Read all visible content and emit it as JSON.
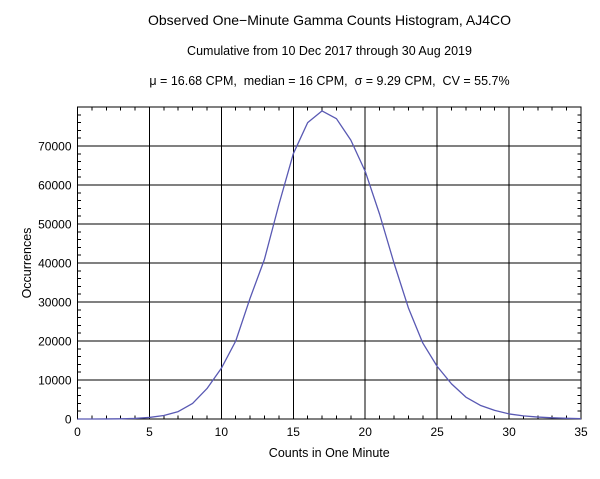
{
  "chart_data": {
    "type": "line",
    "title": "Observed One−Minute Gamma Counts Histogram, AJ4CO",
    "subtitle": "Cumulative from 10 Dec 2017 through 30 Aug 2019",
    "stats_line": "μ = 16.68 CPM,  median = 16 CPM,  σ = 9.29 CPM,  CV = 55.7%",
    "xlabel": "Counts in One Minute",
    "ylabel": "Occurrences",
    "x": [
      0,
      1,
      2,
      3,
      4,
      5,
      6,
      7,
      8,
      9,
      10,
      11,
      12,
      13,
      14,
      15,
      16,
      17,
      18,
      19,
      20,
      21,
      22,
      23,
      24,
      25,
      26,
      27,
      28,
      29,
      30,
      31,
      32,
      33,
      34,
      35
    ],
    "values": [
      0,
      0,
      10,
      50,
      150,
      400,
      900,
      1900,
      4000,
      7800,
      13000,
      20000,
      31000,
      41000,
      55000,
      68000,
      76000,
      79000,
      77000,
      71500,
      63500,
      52500,
      40000,
      28500,
      19500,
      13500,
      9000,
      5600,
      3500,
      2200,
      1300,
      800,
      500,
      300,
      180,
      100
    ],
    "xlim": [
      0,
      35
    ],
    "ylim": [
      0,
      80000
    ],
    "xticks": {
      "major": [
        0,
        5,
        10,
        15,
        20,
        25,
        30,
        35
      ],
      "minor_step": 1
    },
    "yticks": {
      "major": [
        0,
        10000,
        20000,
        30000,
        40000,
        50000,
        60000,
        70000
      ],
      "minor_step": 2000
    },
    "grid": true,
    "legend": null,
    "line_color": "#5959B3",
    "frame_color": "#000000",
    "grid_color": "#000000",
    "stats": {
      "mean_cpm": 16.68,
      "median_cpm": 16,
      "sigma_cpm": 9.29,
      "cv_percent": 55.7
    }
  }
}
